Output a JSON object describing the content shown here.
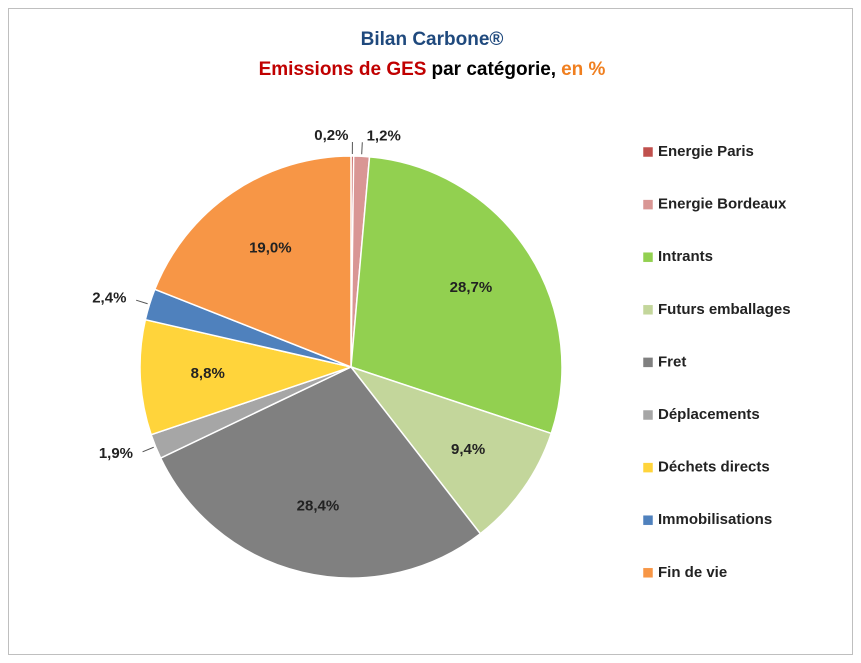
{
  "chart_data": {
    "type": "pie",
    "title": "Bilan Carbone®",
    "title_color": "#1f497d",
    "subtitle": [
      {
        "text": "Emissions de GES",
        "color": "#c00000"
      },
      {
        "text": "par catégorie,",
        "color": "#000000"
      },
      {
        "text": "en %",
        "color": "#f07f1f"
      }
    ],
    "categories": [
      "Energie Paris",
      "Energie Bordeaux",
      "Intrants",
      "Futurs emballages",
      "Fret",
      "Déplacements",
      "Déchets directs",
      "Immobilisations",
      "Fin de vie"
    ],
    "values": [
      0.2,
      1.2,
      28.7,
      9.4,
      28.4,
      1.9,
      8.8,
      2.4,
      19.0
    ],
    "value_labels": [
      "0,2%",
      "1,2%",
      "28,7%",
      "9,4%",
      "28,4%",
      "1,9%",
      "8,8%",
      "2,4%",
      "19,0%"
    ],
    "colors": [
      "#c0504d",
      "#d99694",
      "#92d050",
      "#c3d69b",
      "#808080",
      "#a6a6a6",
      "#ffd43b",
      "#4f81bd",
      "#f79646"
    ],
    "legend": "right"
  }
}
